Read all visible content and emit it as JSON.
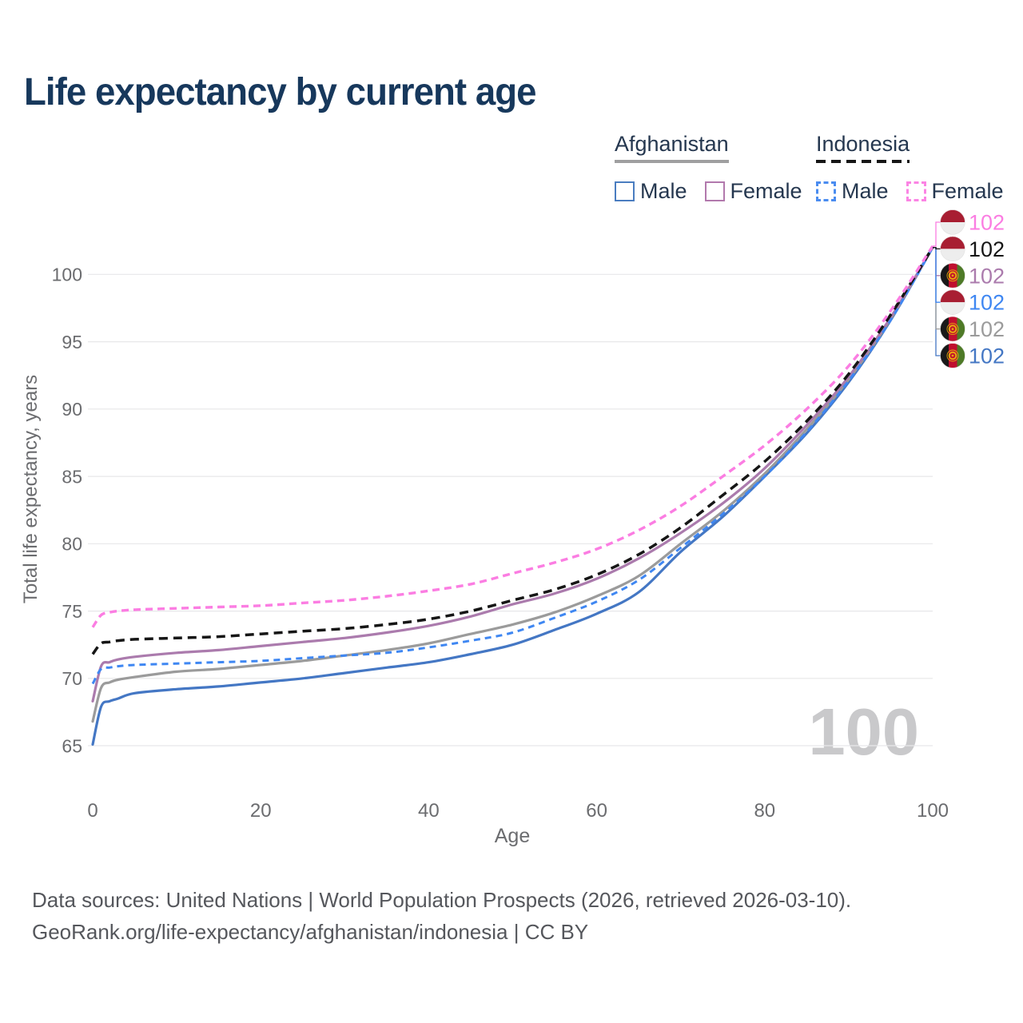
{
  "title": "Life expectancy by current age",
  "legend": {
    "groups": [
      {
        "country": "Afghanistan",
        "line_style": "solid",
        "underline_color": "#9f9fa0",
        "items": [
          {
            "label": "Male",
            "color": "#4a7dc0"
          },
          {
            "label": "Female",
            "color": "#b279ad"
          }
        ]
      },
      {
        "country": "Indonesia",
        "line_style": "dashed",
        "underline_color": "#161616",
        "items": [
          {
            "label": "Male",
            "color": "#4a8cf0"
          },
          {
            "label": "Female",
            "color": "#fb84e4"
          }
        ]
      }
    ]
  },
  "chart_data": {
    "type": "line",
    "title": "Life expectancy by current age",
    "xlabel": "Age",
    "ylabel": "Total life expectancy, years",
    "xlim": [
      0,
      100
    ],
    "ylim": [
      65,
      103
    ],
    "xticks": [
      0,
      20,
      40,
      60,
      80,
      100
    ],
    "yticks": [
      65,
      70,
      75,
      80,
      85,
      90,
      95,
      100
    ],
    "grid": "horizontal-only",
    "legend_position": "top-right",
    "watermark": "100",
    "x": [
      0,
      1,
      2,
      3,
      5,
      10,
      15,
      20,
      25,
      30,
      35,
      40,
      45,
      50,
      55,
      60,
      65,
      70,
      75,
      80,
      85,
      90,
      95,
      100
    ],
    "series": [
      {
        "name": "Afghanistan Male",
        "country": "Afghanistan",
        "sex": "Male",
        "color": "#4477c4",
        "dash": null,
        "width": 3.2,
        "label_row": 5,
        "flag": "afghanistan",
        "flag_icon": "afghanistan-flag-icon",
        "end_label": "102",
        "values": [
          65.1,
          67.9,
          68.3,
          68.5,
          68.9,
          69.2,
          69.4,
          69.7,
          70.0,
          70.4,
          70.8,
          71.2,
          71.8,
          72.5,
          73.6,
          74.8,
          76.4,
          79.4,
          82.0,
          85.0,
          88.2,
          92.0,
          96.6,
          102.0
        ]
      },
      {
        "name": "Afghanistan",
        "country": "Afghanistan",
        "sex": "Both",
        "color": "#9b9b9b",
        "dash": null,
        "width": 3.2,
        "label_row": 4,
        "flag": "afghanistan",
        "flag_icon": "afghanistan-flag-icon",
        "end_label": "102",
        "values": [
          66.8,
          69.3,
          69.7,
          69.9,
          70.1,
          70.5,
          70.7,
          71.0,
          71.3,
          71.7,
          72.1,
          72.6,
          73.3,
          74.0,
          74.9,
          76.1,
          77.6,
          80.0,
          82.4,
          85.2,
          88.5,
          92.2,
          96.7,
          102.0
        ]
      },
      {
        "name": "Afghanistan Female",
        "country": "Afghanistan",
        "sex": "Female",
        "color": "#ab7bad",
        "dash": null,
        "width": 3.2,
        "label_row": 2,
        "flag": "afghanistan",
        "flag_icon": "afghanistan-flag-icon",
        "end_label": "102",
        "values": [
          68.3,
          70.9,
          71.2,
          71.4,
          71.6,
          71.9,
          72.1,
          72.4,
          72.7,
          73.0,
          73.4,
          73.9,
          74.6,
          75.5,
          76.3,
          77.4,
          78.9,
          80.8,
          83.0,
          85.6,
          88.8,
          92.4,
          96.8,
          102.0
        ]
      },
      {
        "name": "Indonesia Male",
        "country": "Indonesia",
        "sex": "Male",
        "color": "#3f87f2",
        "dash": "8 6",
        "width": 3.0,
        "label_row": 3,
        "flag": "indonesia",
        "flag_icon": "indonesia-flag-icon",
        "end_label": "102",
        "values": [
          69.6,
          70.7,
          70.8,
          70.9,
          71.0,
          71.1,
          71.2,
          71.3,
          71.5,
          71.7,
          71.9,
          72.3,
          72.8,
          73.4,
          74.5,
          75.7,
          77.3,
          79.7,
          82.2,
          85.0,
          88.3,
          92.1,
          96.6,
          102.0
        ]
      },
      {
        "name": "Indonesia",
        "country": "Indonesia",
        "sex": "Both",
        "color": "#161616",
        "dash": "11 7",
        "width": 3.5,
        "label_row": 1,
        "flag": "indonesia",
        "flag_icon": "indonesia-flag-icon",
        "end_label": "102",
        "values": [
          71.8,
          72.6,
          72.7,
          72.8,
          72.9,
          73.0,
          73.1,
          73.3,
          73.5,
          73.7,
          74.0,
          74.4,
          75.0,
          75.8,
          76.6,
          77.7,
          79.2,
          81.2,
          83.6,
          86.1,
          89.1,
          92.6,
          97.0,
          102.0
        ]
      },
      {
        "name": "Indonesia Female",
        "country": "Indonesia",
        "sex": "Female",
        "color": "#fb7de2",
        "dash": "9 6",
        "width": 3.4,
        "label_row": 0,
        "flag": "indonesia",
        "flag_icon": "indonesia-flag-icon",
        "end_label": "102",
        "values": [
          73.8,
          74.7,
          74.9,
          75.0,
          75.1,
          75.2,
          75.3,
          75.4,
          75.6,
          75.8,
          76.1,
          76.5,
          77.0,
          77.8,
          78.6,
          79.6,
          81.0,
          82.8,
          85.0,
          87.3,
          90.0,
          93.2,
          97.3,
          102.1
        ]
      }
    ]
  },
  "footer": {
    "line1": "Data sources: United Nations | World Population Prospects (2026, retrieved 2026-03-10).",
    "line2": "GeoRank.org/life-expectancy/afghanistan/indonesia | CC BY"
  },
  "colors": {
    "title_text": "#17385c",
    "axis_text": "#6b6c6f",
    "gridline": "#e7e7e9",
    "watermark": "#c9c9cb",
    "footer_text": "#55575c"
  }
}
